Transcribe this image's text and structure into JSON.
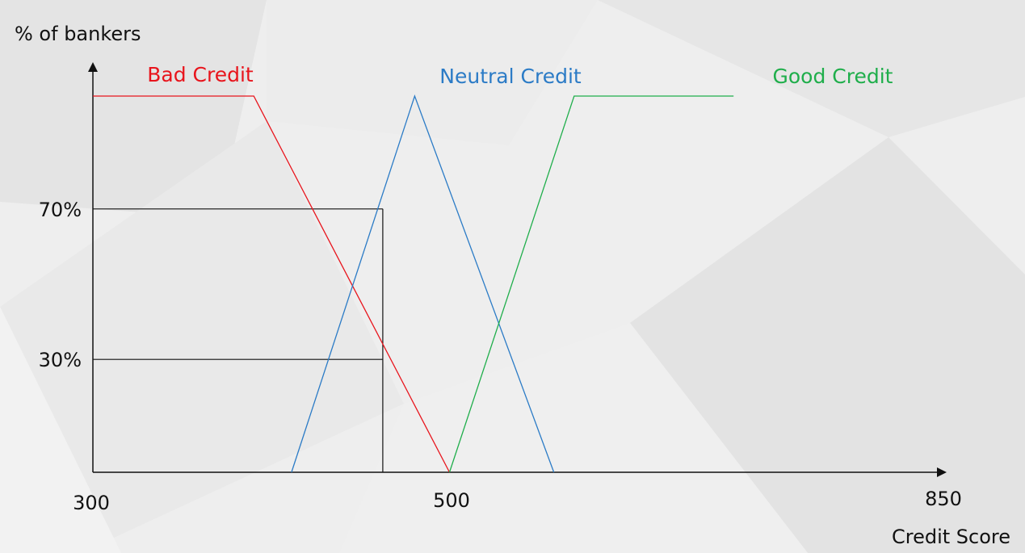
{
  "chart_data": {
    "type": "line",
    "ylabel": "% of bankers",
    "xlabel": "Credit Score",
    "xlim": [
      300,
      850
    ],
    "ylim": [
      0,
      100
    ],
    "x_ticks": [
      {
        "value": 300,
        "label": "300"
      },
      {
        "value": 500,
        "label": "500"
      },
      {
        "value": 850,
        "label": "850"
      }
    ],
    "y_ticks": [
      {
        "value": 70,
        "label": "70%"
      },
      {
        "value": 30,
        "label": "30%"
      }
    ],
    "reference_lines": [
      {
        "x": 500,
        "y": 70
      },
      {
        "x": 500,
        "y": 30
      }
    ],
    "series": [
      {
        "name": "Bad Credit",
        "color": "#e8141c",
        "points": [
          [
            300,
            100
          ],
          [
            411,
            100
          ],
          [
            546,
            0
          ]
        ]
      },
      {
        "name": "Neutral Credit",
        "color": "#2b7bc6",
        "points": [
          [
            437,
            0
          ],
          [
            522,
            100
          ],
          [
            618,
            0
          ]
        ]
      },
      {
        "name": "Good Credit",
        "color": "#1fae4b",
        "points": [
          [
            546,
            0
          ],
          [
            632,
            100
          ],
          [
            742,
            100
          ]
        ]
      }
    ]
  }
}
